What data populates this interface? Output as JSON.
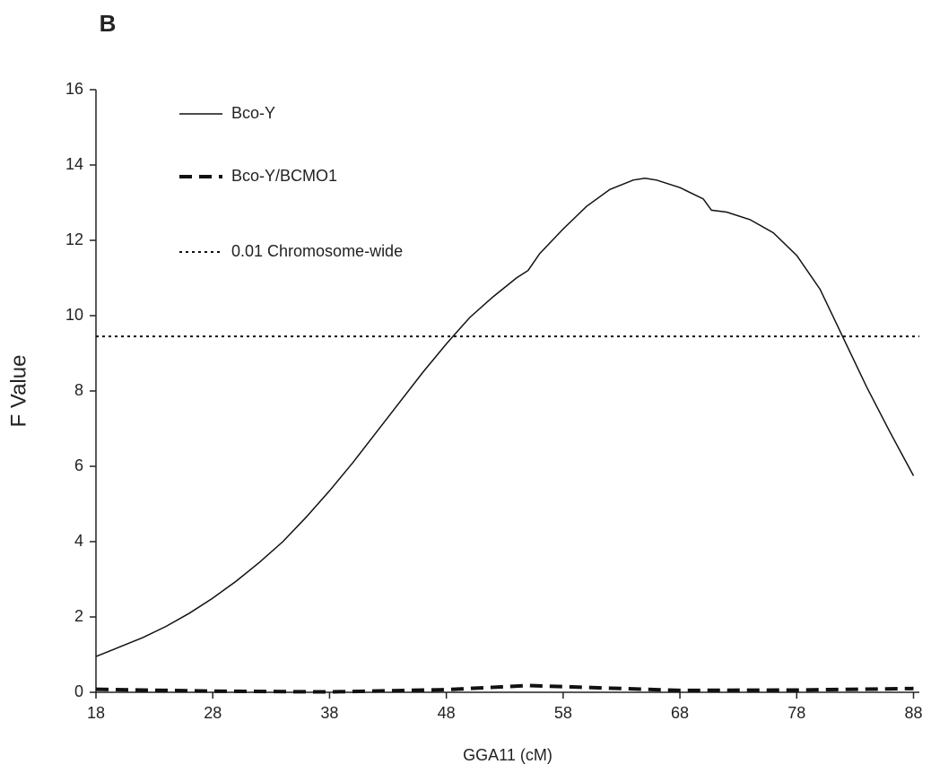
{
  "chart_data": {
    "type": "line",
    "panel_label": "B",
    "x_label": "GGA11 (cM)",
    "y_label": "F Value",
    "xlim": [
      18,
      88.5
    ],
    "xticks": [
      18,
      28,
      38,
      48,
      58,
      68,
      78,
      88
    ],
    "ylim": [
      0,
      16
    ],
    "yticks": [
      0,
      2,
      4,
      6,
      8,
      10,
      12,
      14,
      16
    ],
    "legend": "upper left",
    "series": [
      {
        "name": "Bco-Y",
        "color": "#111111",
        "style": "solid",
        "width": 1.5,
        "x": [
          18,
          20,
          22,
          24,
          26,
          28,
          30,
          32,
          34,
          36,
          38,
          40,
          42,
          44,
          46,
          48,
          50,
          52,
          54,
          55,
          56,
          58,
          60,
          62,
          64,
          65,
          66,
          68,
          70,
          70.7,
          72,
          74,
          76,
          78,
          80,
          82,
          84,
          86,
          88
        ],
        "values": [
          0.95,
          1.2,
          1.45,
          1.75,
          2.1,
          2.5,
          2.95,
          3.45,
          4.0,
          4.65,
          5.35,
          6.1,
          6.9,
          7.7,
          8.5,
          9.25,
          9.95,
          10.5,
          11.0,
          11.2,
          11.65,
          12.3,
          12.9,
          13.35,
          13.6,
          13.65,
          13.6,
          13.4,
          13.1,
          12.8,
          12.75,
          12.55,
          12.2,
          11.6,
          10.7,
          9.4,
          8.1,
          6.9,
          5.75
        ]
      },
      {
        "name": "Bco-Y/BCMO1",
        "color": "#111111",
        "style": "dashed",
        "width": 4,
        "x": [
          18,
          28,
          38,
          48,
          55,
          58,
          68,
          78,
          88
        ],
        "values": [
          0.08,
          0.03,
          0.01,
          0.07,
          0.18,
          0.15,
          0.05,
          0.06,
          0.1
        ]
      },
      {
        "name": "0.01 Chromosome-wide",
        "color": "#111111",
        "style": "dotted",
        "width": 2,
        "x": [
          18,
          88.5
        ],
        "values": [
          9.45,
          9.45
        ]
      }
    ]
  }
}
